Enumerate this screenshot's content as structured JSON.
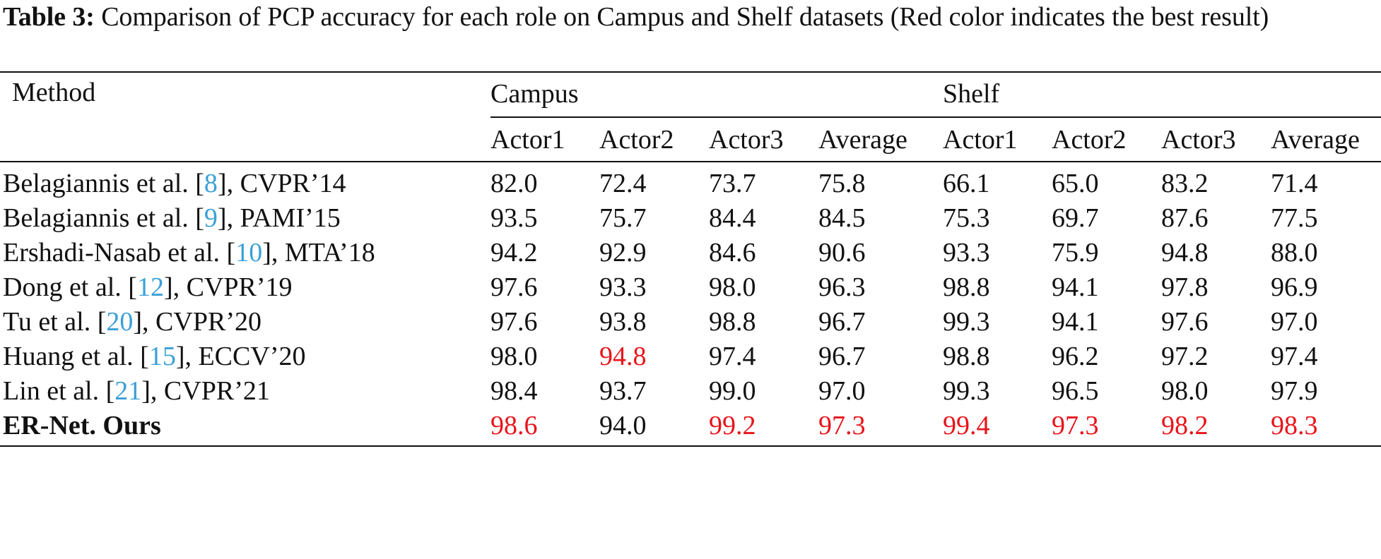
{
  "caption": {
    "label": "Table 3:",
    "text": "Comparison of PCP accuracy for each role on Campus and Shelf datasets (Red color indicates the best result)"
  },
  "header": {
    "method": "Method",
    "groups": [
      "Campus",
      "Shelf"
    ],
    "subheaders": [
      "Actor1",
      "Actor2",
      "Actor3",
      "Average",
      "Actor1",
      "Actor2",
      "Actor3",
      "Average"
    ]
  },
  "rows": [
    {
      "pre": "Belagiannis et al. [",
      "ref": "8",
      "post": "], CVPR’14",
      "values": [
        "82.0",
        "72.4",
        "73.7",
        "75.8",
        "66.1",
        "65.0",
        "83.2",
        "71.4"
      ]
    },
    {
      "pre": "Belagiannis et al. [",
      "ref": "9",
      "post": "], PAMI’15",
      "values": [
        "93.5",
        "75.7",
        "84.4",
        "84.5",
        "75.3",
        "69.7",
        "87.6",
        "77.5"
      ]
    },
    {
      "pre": "Ershadi-Nasab et al. [",
      "ref": "10",
      "post": "], MTA’18",
      "values": [
        "94.2",
        "92.9",
        "84.6",
        "90.6",
        "93.3",
        "75.9",
        "94.8",
        "88.0"
      ]
    },
    {
      "pre": "Dong et al. [",
      "ref": "12",
      "post": "], CVPR’19",
      "values": [
        "97.6",
        "93.3",
        "98.0",
        "96.3",
        "98.8",
        "94.1",
        "97.8",
        "96.9"
      ]
    },
    {
      "pre": "Tu et al. [",
      "ref": "20",
      "post": "], CVPR’20",
      "values": [
        "97.6",
        "93.8",
        "98.8",
        "96.7",
        "99.3",
        "94.1",
        "97.6",
        "97.0"
      ]
    },
    {
      "pre": "Huang et al. [",
      "ref": "15",
      "post": "], ECCV’20",
      "values": [
        "98.0",
        "94.8",
        "97.4",
        "96.7",
        "98.8",
        "96.2",
        "97.2",
        "97.4"
      ]
    },
    {
      "pre": "Lin et al. [",
      "ref": "21",
      "post": "], CVPR’21",
      "values": [
        "98.4",
        "93.7",
        "99.0",
        "97.0",
        "99.3",
        "96.5",
        "98.0",
        "97.9"
      ]
    },
    {
      "name": "ER-Net. Ours",
      "values": [
        "98.6",
        "94.0",
        "99.2",
        "97.3",
        "99.4",
        "97.3",
        "98.2",
        "98.3"
      ]
    }
  ],
  "highlight_color": "#e8141a",
  "reference_color": "#3aa0d8"
}
